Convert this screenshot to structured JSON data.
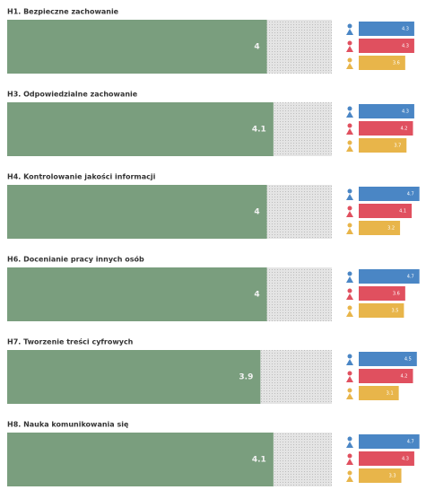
{
  "chart_data": [
    {
      "type": "bar",
      "title": "H1. Bezpieczne zachowanie",
      "score": 4,
      "xlim": [
        0,
        5
      ],
      "values": [
        4.3,
        4.3,
        3.6
      ],
      "colors": [
        "#4a86c5",
        "#e0505f",
        "#e8b54a"
      ],
      "score_color": "#7a9e7e"
    },
    {
      "type": "bar",
      "title": "H3. Odpowiedzialne zachowanie",
      "score": 4.1,
      "xlim": [
        0,
        5
      ],
      "values": [
        4.3,
        4.2,
        3.7
      ],
      "colors": [
        "#4a86c5",
        "#e0505f",
        "#e8b54a"
      ],
      "score_color": "#7a9e7e"
    },
    {
      "type": "bar",
      "title": "H4. Kontrolowanie jakości informacji",
      "score": 4,
      "xlim": [
        0,
        5
      ],
      "values": [
        4.7,
        4.1,
        3.2
      ],
      "colors": [
        "#4a86c5",
        "#e0505f",
        "#e8b54a"
      ],
      "score_color": "#7a9e7e"
    },
    {
      "type": "bar",
      "title": "H6. Docenianie pracy innych osób",
      "score": 4,
      "xlim": [
        0,
        5
      ],
      "values": [
        4.7,
        3.6,
        3.5
      ],
      "colors": [
        "#4a86c5",
        "#e0505f",
        "#e8b54a"
      ],
      "score_color": "#7a9e7e"
    },
    {
      "type": "bar",
      "title": "H7. Tworzenie treści cyfrowych",
      "score": 3.9,
      "xlim": [
        0,
        5
      ],
      "values": [
        4.5,
        4.2,
        3.1
      ],
      "colors": [
        "#4a86c5",
        "#e0505f",
        "#e8b54a"
      ],
      "score_color": "#7a9e7e"
    },
    {
      "type": "bar",
      "title": "H8. Nauka komunikowania się",
      "score": 4.1,
      "xlim": [
        0,
        5
      ],
      "values": [
        4.7,
        4.3,
        3.3
      ],
      "colors": [
        "#4a86c5",
        "#e0505f",
        "#e8b54a"
      ],
      "score_color": "#7a9e7e"
    }
  ]
}
